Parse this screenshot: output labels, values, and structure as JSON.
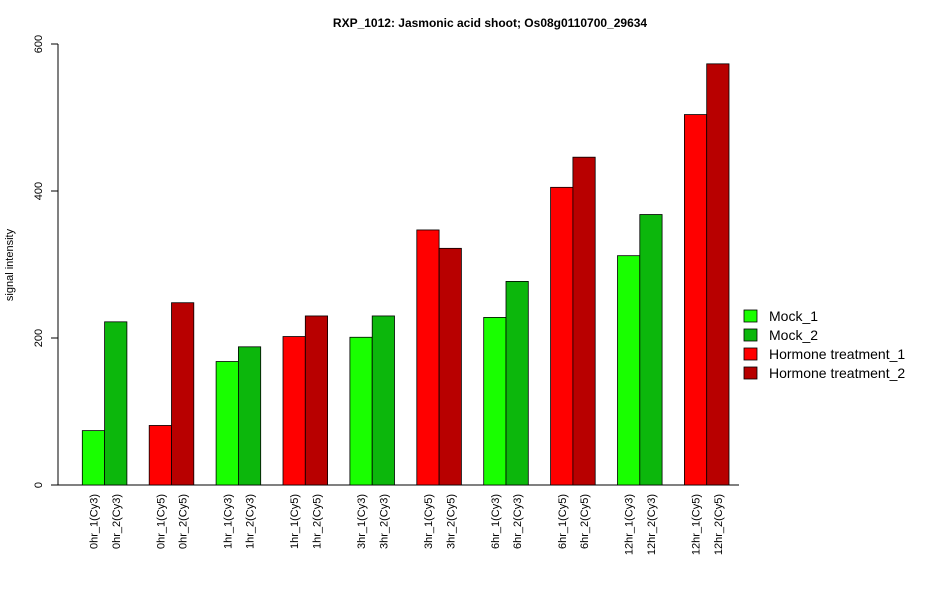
{
  "chart_data": {
    "type": "bar",
    "title": "RXP_1012: Jasmonic acid shoot; Os08g0110700_29634",
    "ylabel": "signal intensity",
    "xlabel": "",
    "ylim": [
      0,
      600
    ],
    "yticks": [
      0,
      200,
      400,
      600
    ],
    "grid": false,
    "legend_position": "right",
    "legend": [
      {
        "name": "Mock_1",
        "color": "#19ff00"
      },
      {
        "name": "Mock_2",
        "color": "#0cb70c"
      },
      {
        "name": "Hormone treatment_1",
        "color": "#ff0000"
      },
      {
        "name": "Hormone treatment_2",
        "color": "#b80000"
      }
    ],
    "bars": [
      {
        "label": "0hr_1(Cy3)",
        "value": 74,
        "series": 0
      },
      {
        "label": "0hr_2(Cy3)",
        "value": 222,
        "series": 1
      },
      {
        "label": "0hr_1(Cy5)",
        "value": 81,
        "series": 2
      },
      {
        "label": "0hr_2(Cy5)",
        "value": 248,
        "series": 3
      },
      {
        "label": "1hr_1(Cy3)",
        "value": 168,
        "series": 0
      },
      {
        "label": "1hr_2(Cy3)",
        "value": 188,
        "series": 1
      },
      {
        "label": "1hr_1(Cy5)",
        "value": 202,
        "series": 2
      },
      {
        "label": "1hr_2(Cy5)",
        "value": 230,
        "series": 3
      },
      {
        "label": "3hr_1(Cy3)",
        "value": 201,
        "series": 0
      },
      {
        "label": "3hr_2(Cy3)",
        "value": 230,
        "series": 1
      },
      {
        "label": "3hr_1(Cy5)",
        "value": 347,
        "series": 2
      },
      {
        "label": "3hr_2(Cy5)",
        "value": 322,
        "series": 3
      },
      {
        "label": "6hr_1(Cy3)",
        "value": 228,
        "series": 0
      },
      {
        "label": "6hr_2(Cy3)",
        "value": 277,
        "series": 1
      },
      {
        "label": "6hr_1(Cy5)",
        "value": 405,
        "series": 2
      },
      {
        "label": "6hr_2(Cy5)",
        "value": 446,
        "series": 3
      },
      {
        "label": "12hr_1(Cy3)",
        "value": 312,
        "series": 0
      },
      {
        "label": "12hr_2(Cy3)",
        "value": 368,
        "series": 1
      },
      {
        "label": "12hr_1(Cy5)",
        "value": 504,
        "series": 2
      },
      {
        "label": "12hr_2(Cy5)",
        "value": 573,
        "series": 3
      }
    ]
  }
}
